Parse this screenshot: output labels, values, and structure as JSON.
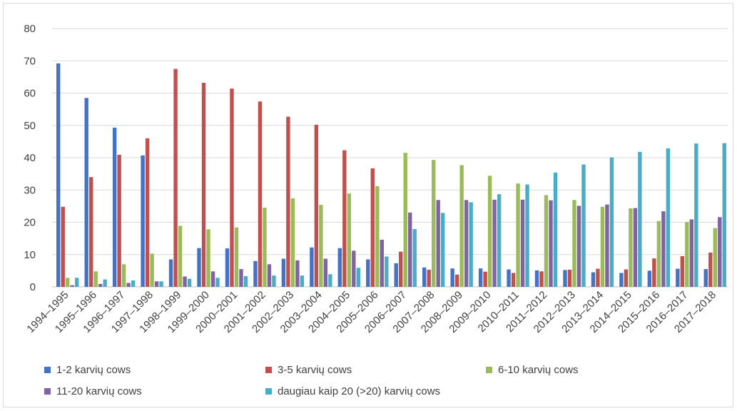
{
  "chart_data": {
    "type": "bar",
    "title": "",
    "xlabel": "",
    "ylabel": "",
    "ylim": [
      0,
      80
    ],
    "yticks": [
      "0",
      "10",
      "20",
      "30",
      "40",
      "50",
      "60",
      "70",
      "80"
    ],
    "grid": true,
    "legend_position": "bottom",
    "categories": [
      "1994–1995",
      "1995–1996",
      "1996–1997",
      "1997–1998",
      "1998–1999",
      "1999–2000",
      "2000–2001",
      "2001–2002",
      "2002–2003",
      "2003–2004",
      "2004–2005",
      "2005–2006",
      "2006–2007",
      "2007–2008",
      "2008–2009",
      "2009–2010",
      "2010–2011",
      "2011–2012",
      "2012–2013",
      "2013–2014",
      "2014–2015",
      "2015–2016",
      "2016–2017",
      "2017–2018"
    ],
    "series": [
      {
        "name": "1-2 karvių cows",
        "color": "#4472c4",
        "values": [
          69.2,
          58.5,
          49.3,
          40.7,
          8.5,
          12.0,
          11.9,
          8.0,
          8.7,
          12.2,
          12.0,
          8.5,
          7.3,
          6.0,
          5.7,
          5.7,
          5.4,
          5.1,
          5.2,
          4.5,
          4.3,
          5.0,
          5.6,
          5.5
        ]
      },
      {
        "name": "3-5 karvių cows",
        "color": "#c0504d",
        "values": [
          24.8,
          34.0,
          40.9,
          46.0,
          67.5,
          63.2,
          61.4,
          57.4,
          52.7,
          50.2,
          42.3,
          36.7,
          10.9,
          5.3,
          3.8,
          4.7,
          4.3,
          4.8,
          5.3,
          5.6,
          5.4,
          8.8,
          9.5,
          10.6
        ]
      },
      {
        "name": "6-10 karvių cows",
        "color": "#9bbb59",
        "values": [
          2.8,
          4.8,
          7.0,
          10.3,
          18.9,
          17.8,
          18.4,
          24.5,
          27.4,
          25.4,
          28.9,
          31.2,
          41.5,
          39.3,
          37.7,
          34.4,
          32.0,
          28.4,
          26.9,
          24.8,
          24.3,
          20.4,
          20.1,
          18.2
        ]
      },
      {
        "name": "11-20 karvių cows",
        "color": "#8064a2",
        "values": [
          0.5,
          0.9,
          1.2,
          1.7,
          3.2,
          4.8,
          5.5,
          7.0,
          8.2,
          8.7,
          11.2,
          14.6,
          23.0,
          26.9,
          26.9,
          27.0,
          27.0,
          26.8,
          25.1,
          25.5,
          24.4,
          23.4,
          20.9,
          21.6
        ]
      },
      {
        "name": "daugiau kaip 20 (>20) karvių cows",
        "color": "#4bacc6",
        "values": [
          2.8,
          2.3,
          2.0,
          1.7,
          2.5,
          2.8,
          3.3,
          3.5,
          3.5,
          3.9,
          5.9,
          9.4,
          17.9,
          22.9,
          26.2,
          28.7,
          31.7,
          35.4,
          37.9,
          40.1,
          41.8,
          42.9,
          44.4,
          44.5
        ]
      }
    ]
  }
}
